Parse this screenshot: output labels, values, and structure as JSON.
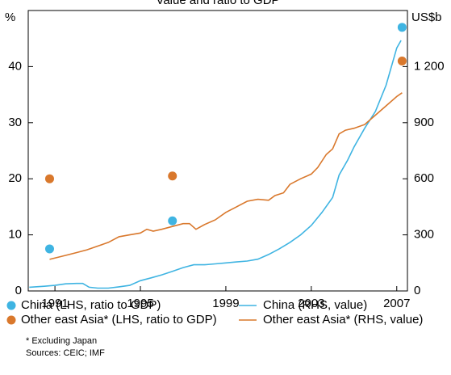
{
  "chart_data": {
    "type": "combo",
    "title": "Value and ratio to GDP",
    "ylabel": "%",
    "y2label": "US$b",
    "xlim": [
      1989.75,
      2007.5
    ],
    "xticks": [
      1991,
      1995,
      1999,
      2003,
      2007
    ],
    "ylim": [
      0,
      50
    ],
    "yticks": [
      0,
      10,
      20,
      30,
      40
    ],
    "y2lim": [
      0,
      1500
    ],
    "y2ticks": [
      0,
      300,
      600,
      900,
      {
        "value": 1200,
        "label": "1 200"
      }
    ],
    "series": [
      {
        "name": "China (LHS, ratio to GDP)",
        "type": "scatter",
        "color": "#3fb4e2",
        "x": [
          1990.75,
          1996.5,
          2007.25
        ],
        "values": [
          7.5,
          12.5,
          47
        ]
      },
      {
        "name": "Other east Asia* (LHS, ratio to GDP)",
        "type": "scatter",
        "color": "#d9782c",
        "x": [
          1990.75,
          1996.5,
          2007.25
        ],
        "values": [
          20,
          20.5,
          41
        ]
      },
      {
        "name": "China (RHS, value)",
        "type": "line",
        "axis": "y2",
        "color": "#3fb4e2",
        "x": [
          1989.8,
          1990.5,
          1991,
          1991.5,
          1992,
          1992.3,
          1992.6,
          1993,
          1993.5,
          1994,
          1994.5,
          1995,
          1995.5,
          1996,
          1996.5,
          1997,
          1997.5,
          1998,
          1998.5,
          1999,
          1999.5,
          2000,
          2000.5,
          2001,
          2001.5,
          2002,
          2002.5,
          2003,
          2003.5,
          2004,
          2004.3,
          2004.7,
          2005,
          2005.5,
          2006,
          2006.5,
          2007,
          2007.2
        ],
        "values": [
          20,
          25,
          30,
          38,
          40,
          40,
          20,
          15,
          15,
          22,
          30,
          55,
          70,
          86,
          105,
          125,
          140,
          140,
          145,
          150,
          155,
          160,
          170,
          195,
          225,
          260,
          300,
          350,
          420,
          500,
          620,
          700,
          770,
          870,
          960,
          1100,
          1300,
          1340
        ]
      },
      {
        "name": "Other east Asia* (RHS, value)",
        "type": "line",
        "axis": "y2",
        "color": "#d9782c",
        "x": [
          1990.75,
          1991.5,
          1992,
          1992.5,
          1993,
          1993.5,
          1994,
          1994.5,
          1995,
          1995.3,
          1995.6,
          1996,
          1996.5,
          1997,
          1997.3,
          1997.6,
          1998,
          1998.5,
          1999,
          1999.5,
          2000,
          2000.5,
          2001,
          2001.3,
          2001.7,
          2002,
          2002.5,
          2003,
          2003.3,
          2003.7,
          2004,
          2004.3,
          2004.6,
          2005,
          2005.5,
          2006,
          2006.5,
          2007,
          2007.25
        ],
        "values": [
          169,
          190,
          205,
          220,
          240,
          260,
          290,
          300,
          310,
          330,
          320,
          330,
          345,
          360,
          360,
          330,
          355,
          380,
          420,
          450,
          480,
          490,
          485,
          510,
          525,
          570,
          600,
          625,
          660,
          730,
          760,
          840,
          860,
          870,
          890,
          940,
          990,
          1040,
          1060
        ]
      }
    ],
    "notes": [
      "* Excluding Japan",
      "Sources: CEIC; IMF"
    ]
  }
}
